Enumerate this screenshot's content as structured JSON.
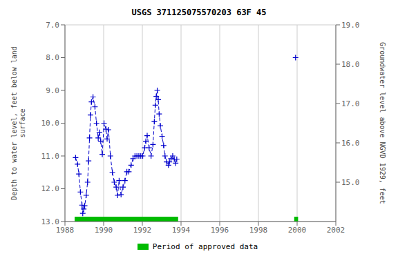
{
  "chart_data": {
    "type": "line",
    "title": "USGS 371125075570203 63F 45",
    "y_label": "Depth to water level, feet below land\nsurface",
    "y2_label": "Groundwater level above NGVD 1929, feet",
    "xlim": [
      1988,
      2002
    ],
    "xticks": [
      1988,
      1990,
      1992,
      1994,
      1996,
      1998,
      2000,
      2002
    ],
    "ylim": [
      13.0,
      7.0
    ],
    "yticks": [
      {
        "value": 7.0,
        "label": "7.0"
      },
      {
        "value": 8.0,
        "label": "8.0"
      },
      {
        "value": 9.0,
        "label": "9.0"
      },
      {
        "value": 10.0,
        "label": "10.0"
      },
      {
        "value": 11.0,
        "label": "11.0"
      },
      {
        "value": 12.0,
        "label": "12.0"
      },
      {
        "value": 13.0,
        "label": "13.0"
      }
    ],
    "y2lim": [
      14.0,
      19.0
    ],
    "y2ticks": [
      {
        "value": 15.0,
        "label": "15.0"
      },
      {
        "value": 16.0,
        "label": "16.0"
      },
      {
        "value": 17.0,
        "label": "17.0"
      },
      {
        "value": 18.0,
        "label": "18.0"
      },
      {
        "value": 19.0,
        "label": "19.0"
      }
    ],
    "grid": true,
    "legend": "bottom",
    "series": [
      {
        "x": [
          1988.55,
          1988.65,
          1988.72,
          1988.8,
          1988.88,
          1988.92,
          1988.97,
          1989.02,
          1989.1,
          1989.17,
          1989.22,
          1989.27,
          1989.32,
          1989.37,
          1989.45,
          1989.55,
          1989.63,
          1989.72,
          1989.78,
          1989.85,
          1989.93,
          1990.02,
          1990.12,
          1990.18,
          1990.25,
          1990.35,
          1990.45,
          1990.55,
          1990.65,
          1990.72,
          1990.8,
          1990.9,
          1991.0,
          1991.1,
          1991.2,
          1991.3,
          1991.42,
          1991.52,
          1991.62,
          1991.72,
          1991.82,
          1991.92,
          1992.02,
          1992.12,
          1992.18,
          1992.25,
          1992.35,
          1992.45,
          1992.55,
          1992.62,
          1992.67,
          1992.72,
          1992.77,
          1992.82,
          1992.87,
          1992.93,
          1993.02,
          1993.1,
          1993.17,
          1993.25,
          1993.35,
          1993.4,
          1993.48,
          1993.57,
          1993.65,
          1993.72,
          1993.78
        ],
        "values": [
          11.05,
          11.25,
          11.55,
          12.1,
          12.5,
          12.75,
          12.62,
          12.52,
          12.2,
          11.8,
          11.15,
          10.45,
          9.75,
          9.35,
          9.2,
          9.5,
          10.0,
          10.45,
          10.28,
          10.55,
          10.95,
          10.0,
          10.18,
          10.48,
          10.2,
          11.0,
          11.5,
          11.8,
          11.95,
          12.2,
          11.75,
          12.18,
          11.95,
          11.75,
          11.48,
          11.48,
          11.28,
          11.08,
          11.0,
          11.0,
          11.0,
          11.0,
          11.0,
          10.75,
          10.55,
          10.38,
          10.75,
          11.0,
          10.65,
          9.95,
          9.45,
          9.18,
          9.0,
          9.28,
          9.72,
          10.08,
          10.4,
          10.68,
          11.0,
          11.18,
          11.28,
          11.18,
          11.08,
          11.0,
          11.1,
          11.22,
          11.1
        ],
        "color": "#0000cc",
        "marker": "plus",
        "line_style": "dashed"
      },
      {
        "x": [
          1999.92
        ],
        "values": [
          8.0
        ],
        "color": "#0000cc",
        "marker": "plus",
        "line_style": "none"
      }
    ],
    "approved_periods": {
      "name": "Period of approved data",
      "color": "#00bb00",
      "ranges": [
        [
          1988.5,
          1993.85
        ],
        [
          1999.85,
          2000.05
        ]
      ]
    }
  }
}
